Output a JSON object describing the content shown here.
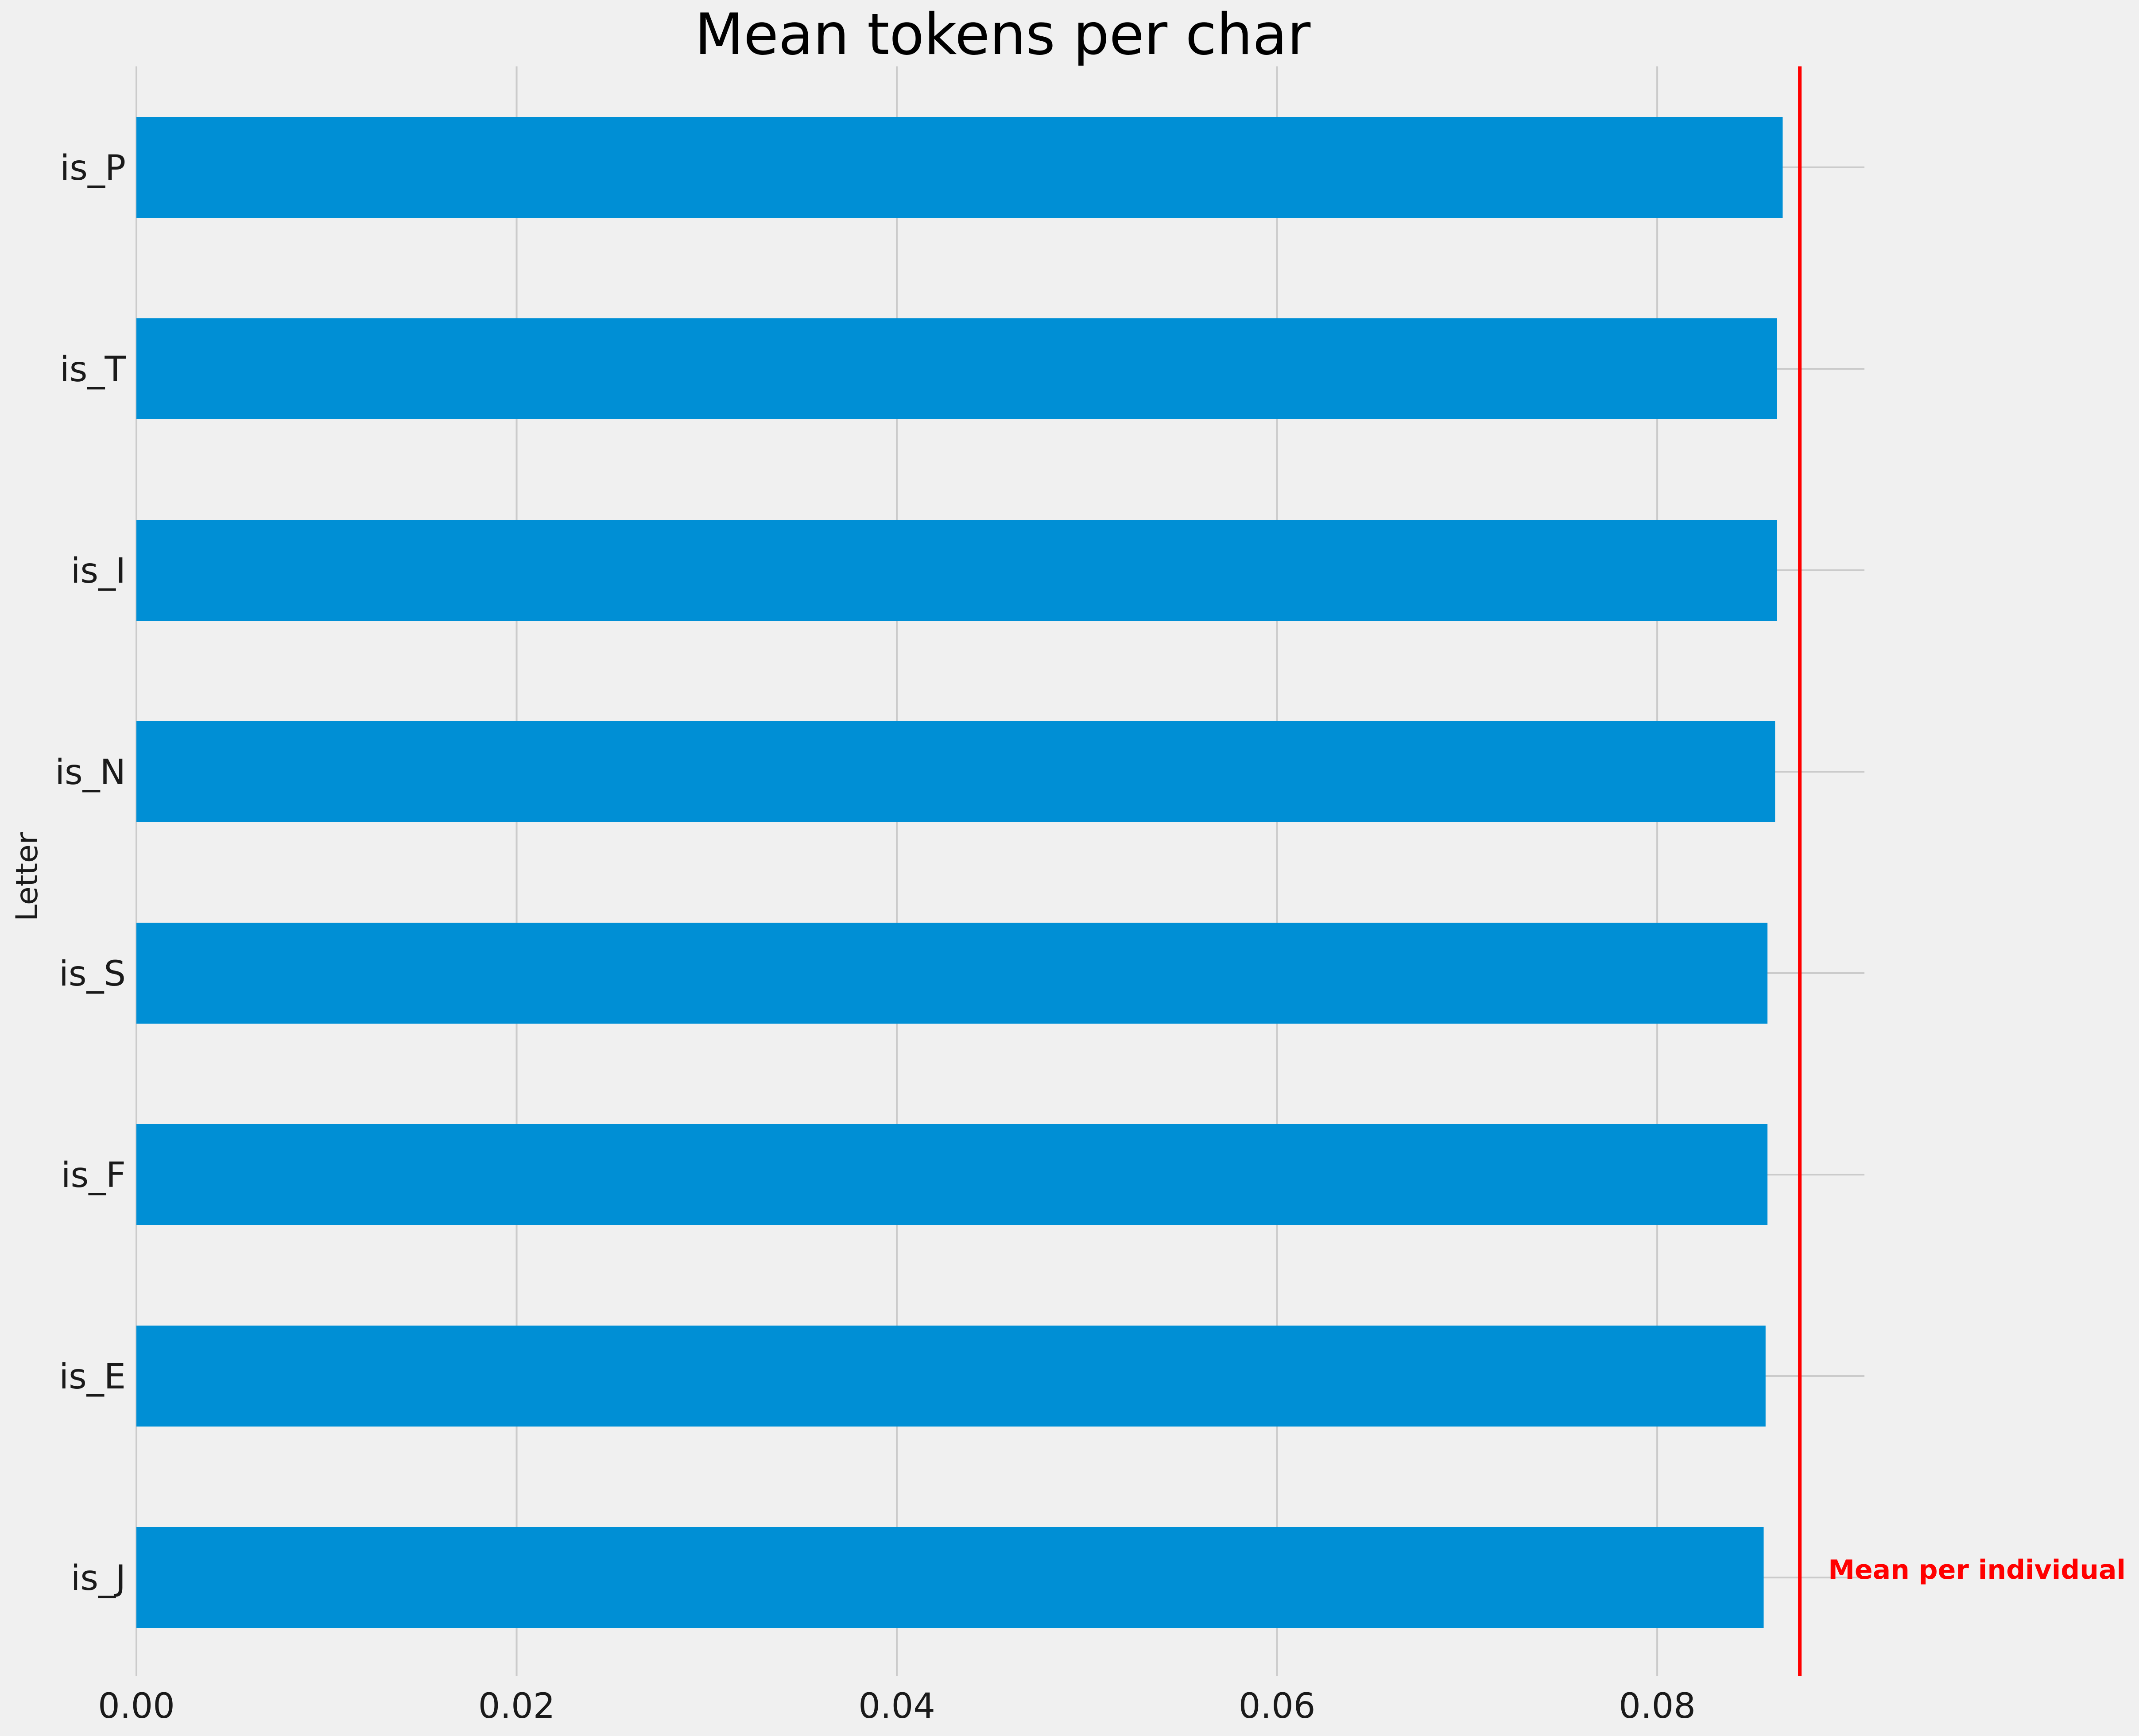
{
  "chart_data": {
    "type": "bar",
    "orientation": "horizontal",
    "title": "Mean tokens per char",
    "xlabel": "",
    "ylabel": "Letter",
    "categories": [
      "is_P",
      "is_T",
      "is_I",
      "is_N",
      "is_S",
      "is_F",
      "is_E",
      "is_J"
    ],
    "values": [
      0.0866,
      0.0863,
      0.0863,
      0.0862,
      0.0858,
      0.0858,
      0.0857,
      0.0856
    ],
    "xlim": [
      0,
      0.0909
    ],
    "xticks": [
      0.0,
      0.02,
      0.04,
      0.06,
      0.08
    ],
    "xtick_labels": [
      "0.00",
      "0.02",
      "0.04",
      "0.06",
      "0.08"
    ],
    "grid": true,
    "bar_color": "#008fd5",
    "background_color": "#f0f0f0",
    "grid_color": "#cbcbcb",
    "reference_line": {
      "value": 0.0875,
      "label": "Mean per individual",
      "color": "#ff0000"
    }
  }
}
